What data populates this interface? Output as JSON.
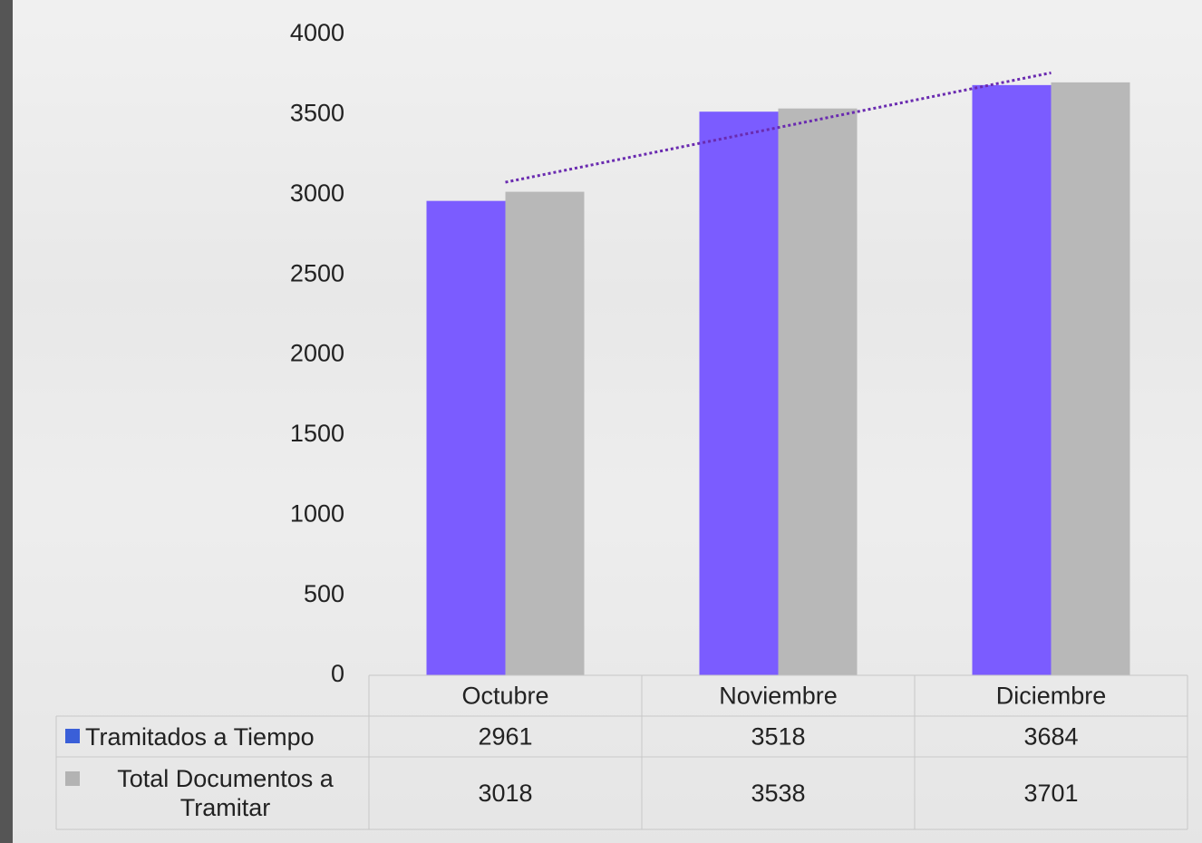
{
  "chart_data": {
    "type": "bar",
    "categories": [
      "Octubre",
      "Noviembre",
      "Diciembre"
    ],
    "series": [
      {
        "name": "Tramitados a Tiempo",
        "color": "#7b5cff",
        "legend_color": "#3a5fd8",
        "values": [
          2961,
          3518,
          3684
        ]
      },
      {
        "name": "Total Documentos a Tramitar",
        "color": "#b8b8b8",
        "legend_color": "#b3b3b3",
        "values": [
          3018,
          3538,
          3701
        ]
      }
    ],
    "ylim": [
      0,
      4000
    ],
    "yticks": [
      0,
      500,
      1000,
      1500,
      2000,
      2500,
      3000,
      3500,
      4000
    ],
    "trendline": {
      "series": 1,
      "color": "#6a2bb0"
    },
    "data_table": true
  }
}
